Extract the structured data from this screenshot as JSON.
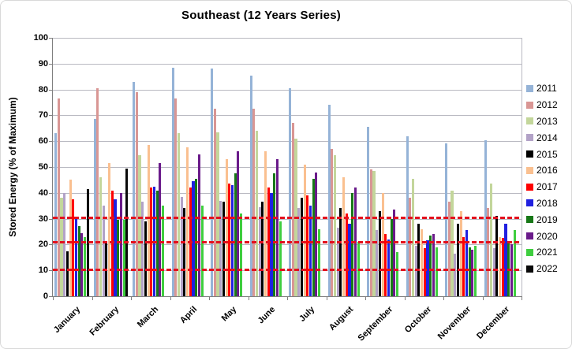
{
  "title": "Southeast (12 Years Series)",
  "y_axis_label": "Stored Energy (% of Maximum)",
  "chart_data": {
    "type": "bar",
    "title": "Southeast (12 Years Series)",
    "xlabel": "",
    "ylabel": "Stored Energy (% of Maximum)",
    "ylim": [
      0,
      100
    ],
    "ytick_step": 10,
    "grid": true,
    "legend_position": "right",
    "categories": [
      "January",
      "February",
      "March",
      "April",
      "May",
      "June",
      "July",
      "August",
      "September",
      "October",
      "November",
      "December"
    ],
    "series": [
      {
        "name": "2011",
        "color": "#95B3D7",
        "values": [
          63,
          68.5,
          83,
          88.5,
          88,
          85.5,
          80.5,
          74,
          65.5,
          62,
          59,
          60.5
        ]
      },
      {
        "name": "2012",
        "color": "#D99694",
        "values": [
          76.5,
          80.5,
          79,
          76.5,
          72.5,
          72.5,
          67,
          57,
          49,
          38,
          36.5,
          34
        ]
      },
      {
        "name": "2013",
        "color": "#C3D69B",
        "values": [
          38,
          46,
          54.5,
          63,
          63.5,
          64,
          61,
          54.5,
          48.5,
          45.5,
          41,
          43.5
        ]
      },
      {
        "name": "2014",
        "color": "#B2A2C7",
        "values": [
          40,
          35,
          36.5,
          38.5,
          37,
          34.5,
          34,
          26.5,
          25.5,
          19.5,
          16.5,
          18.5
        ]
      },
      {
        "name": "2015",
        "color": "#000000",
        "values": [
          17.5,
          21,
          29,
          34,
          36.5,
          36.5,
          38,
          34,
          33,
          28,
          28,
          31
        ]
      },
      {
        "name": "2016",
        "color": "#FAC090",
        "values": [
          45,
          51.5,
          58.5,
          57.5,
          53,
          56,
          51,
          46,
          40,
          26,
          33,
          23
        ]
      },
      {
        "name": "2017",
        "color": "#FE0000",
        "values": [
          37.5,
          41,
          42,
          42,
          43.5,
          42,
          39,
          32,
          24,
          18.5,
          23,
          22.5
        ]
      },
      {
        "name": "2018",
        "color": "#2020E0",
        "values": [
          30,
          37.5,
          42.5,
          44.5,
          43,
          40,
          35,
          28,
          22,
          21.5,
          25.5,
          28
        ]
      },
      {
        "name": "2019",
        "color": "#177817",
        "values": [
          27,
          29.5,
          41,
          45.5,
          47.5,
          47.5,
          45.5,
          40,
          30,
          23.5,
          19,
          20.5
        ]
      },
      {
        "name": "2020",
        "color": "#6A1B8A",
        "values": [
          24.5,
          40,
          51.5,
          55,
          56,
          53,
          48,
          42,
          33.5,
          24,
          18,
          20
        ]
      },
      {
        "name": "2021",
        "color": "#3FCE3F",
        "values": [
          23,
          29.5,
          35,
          35,
          32,
          29,
          26,
          21,
          17,
          19,
          19.5,
          25.5
        ]
      },
      {
        "name": "2022",
        "color": "#0A0A0A",
        "values": [
          41.5,
          49.5,
          null,
          null,
          null,
          null,
          null,
          null,
          null,
          null,
          null,
          null
        ]
      }
    ],
    "reference_lines": [
      {
        "value": 10.5,
        "color": "#E3101D",
        "style": "dashed"
      },
      {
        "value": 21,
        "color": "#E3101D",
        "style": "dashed"
      },
      {
        "value": 30.5,
        "color": "#E3101D",
        "style": "dashed"
      }
    ]
  }
}
